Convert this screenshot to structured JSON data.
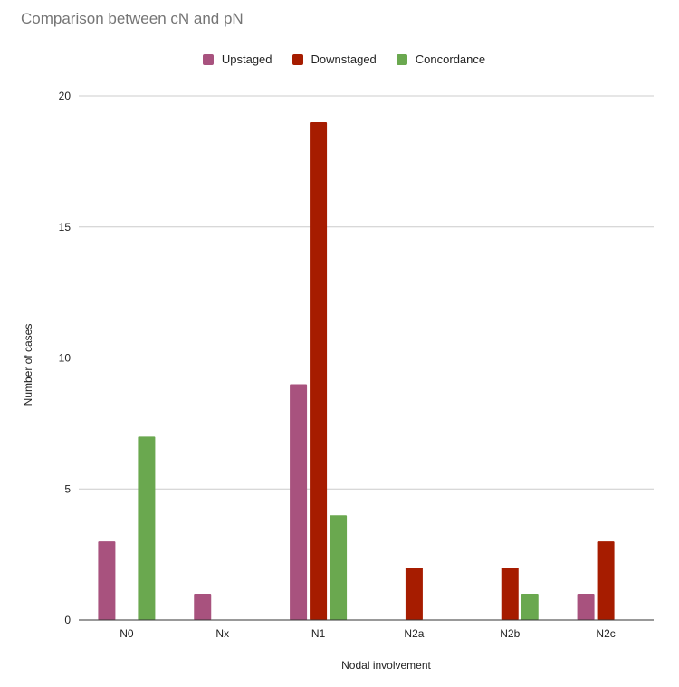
{
  "chart_data": {
    "type": "bar",
    "title": "Comparison between cN and pN",
    "xlabel": "Nodal involvement",
    "ylabel": "Number of cases",
    "categories": [
      "N0",
      "Nx",
      "N1",
      "N2a",
      "N2b",
      "N2c"
    ],
    "series": [
      {
        "name": "Upstaged",
        "color": "#a8527e",
        "values": [
          3,
          1,
          9,
          0,
          0,
          1
        ]
      },
      {
        "name": "Downstaged",
        "color": "#a61c00",
        "values": [
          0,
          0,
          19,
          2,
          2,
          3
        ]
      },
      {
        "name": "Concordance",
        "color": "#6aa84f",
        "values": [
          7,
          0,
          4,
          0,
          1,
          0
        ]
      }
    ],
    "ylim": [
      0,
      20
    ],
    "yticks": [
      0,
      5,
      10,
      15,
      20
    ],
    "grid": true,
    "legend_position": "top"
  }
}
